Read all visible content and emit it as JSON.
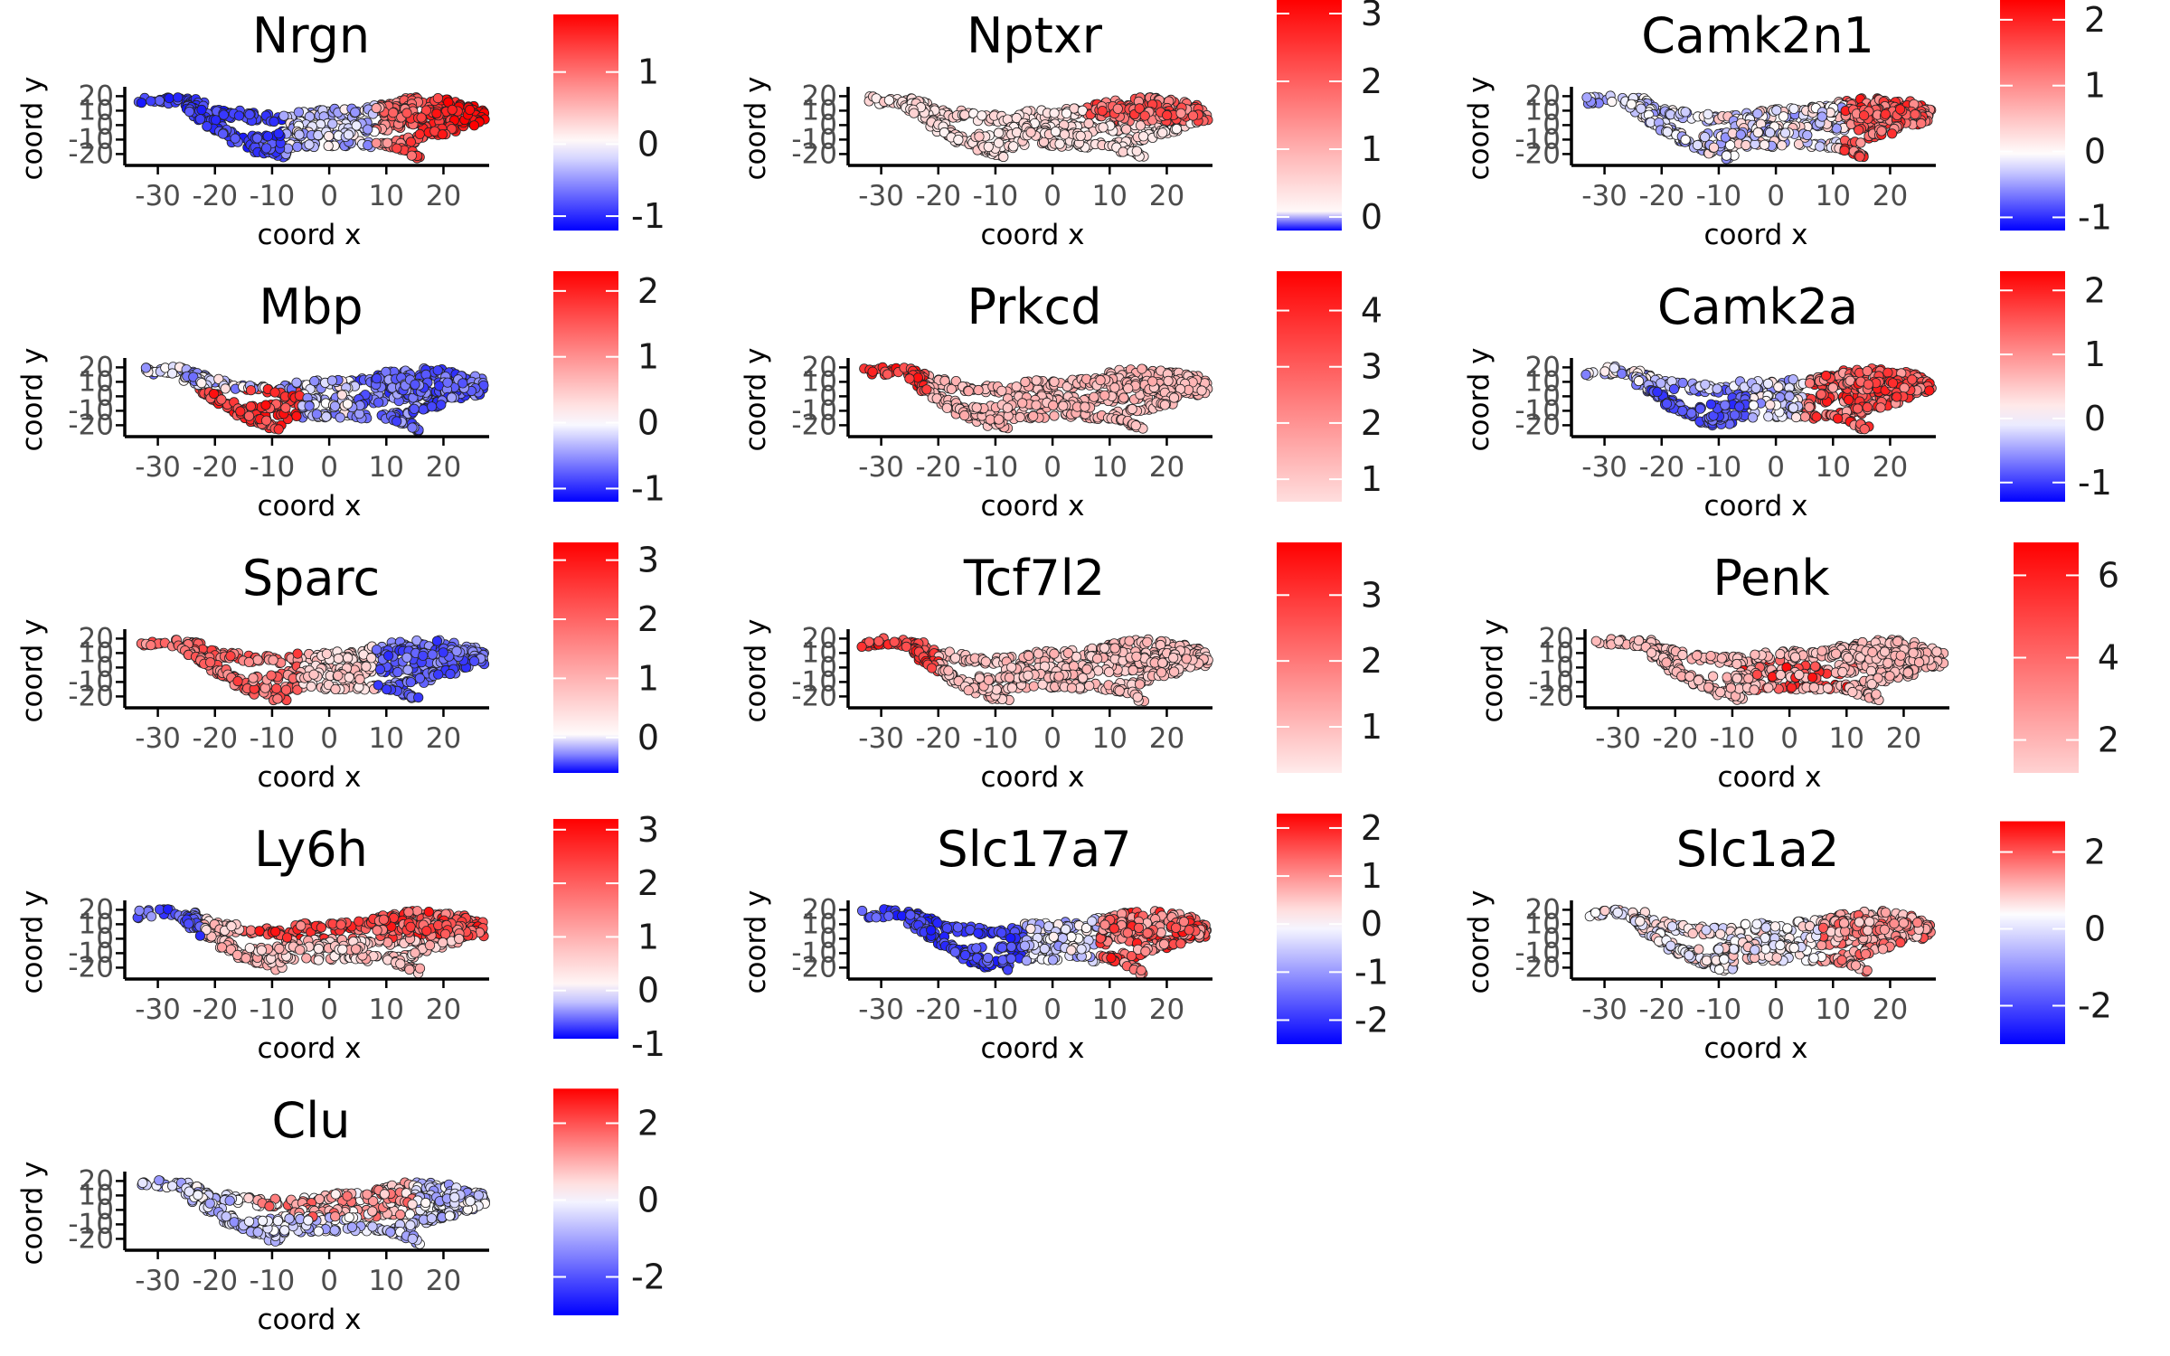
{
  "figure": {
    "colors": {
      "low": "#0000ff",
      "mid": "#ffffff",
      "high": "#ff0000",
      "point_outline": "#222222",
      "axis": "#000000",
      "tick_label": "#4d4d4d"
    }
  },
  "chart_data": [
    {
      "type": "scatter",
      "title": "Nrgn",
      "xlabel": "coord x",
      "ylabel": "coord y",
      "x_ticks": [
        "-30",
        "-20",
        "-10",
        "0",
        "10",
        "20"
      ],
      "y_ticks": [
        "20",
        "10",
        "0",
        "-10",
        "-20"
      ],
      "xlim": [
        -35,
        28
      ],
      "ylim": [
        -26,
        24
      ],
      "grid": false,
      "colorbar": {
        "ticks": [
          "1",
          "0",
          "-1"
        ],
        "tick_values": [
          1,
          0,
          -1
        ],
        "domain": [
          -1.2,
          2.0
        ],
        "gradient_span": [
          -1.2,
          1.8
        ],
        "legend_position": "right"
      },
      "spatial_pattern": "high in right lobe (x 10 to 25), low on left arm (x -30 to -10)"
    },
    {
      "type": "scatter",
      "title": "Nptxr",
      "xlabel": "coord x",
      "ylabel": "coord y",
      "x_ticks": [
        "-30",
        "-20",
        "-10",
        "0",
        "10",
        "20"
      ],
      "y_ticks": [
        "20",
        "10",
        "0",
        "-10",
        "-20"
      ],
      "xlim": [
        -35,
        28
      ],
      "ylim": [
        -26,
        24
      ],
      "grid": false,
      "colorbar": {
        "ticks": [
          "3",
          "2",
          "1",
          "0"
        ],
        "tick_values": [
          3,
          2,
          1,
          0
        ],
        "domain": [
          -0.2,
          3.2
        ],
        "gradient_span": [
          -0.2,
          3.2
        ],
        "legend_position": "right"
      },
      "spatial_pattern": "high in upper right lobe (x 8 to 22), low elsewhere"
    },
    {
      "type": "scatter",
      "title": "Camk2n1",
      "xlabel": "coord x",
      "ylabel": "coord y",
      "x_ticks": [
        "-30",
        "-20",
        "-10",
        "0",
        "10",
        "20"
      ],
      "y_ticks": [
        "20",
        "10",
        "0",
        "-10",
        "-20"
      ],
      "xlim": [
        -35,
        28
      ],
      "ylim": [
        -26,
        24
      ],
      "grid": false,
      "colorbar": {
        "ticks": [
          "2",
          "1",
          "0",
          "-1"
        ],
        "tick_values": [
          2,
          1,
          0,
          -1
        ],
        "domain": [
          -1.2,
          2.3
        ],
        "gradient_span": [
          -1.2,
          2.5
        ],
        "legend_position": "right"
      },
      "spatial_pattern": "high in right lobe (x 15 to 25), mixed in middle"
    },
    {
      "type": "scatter",
      "title": "Mbp",
      "xlabel": "coord x",
      "ylabel": "coord y",
      "x_ticks": [
        "-30",
        "-20",
        "-10",
        "0",
        "10",
        "20"
      ],
      "y_ticks": [
        "20",
        "10",
        "0",
        "-10",
        "-20"
      ],
      "xlim": [
        -35,
        28
      ],
      "ylim": [
        -26,
        24
      ],
      "grid": false,
      "colorbar": {
        "ticks": [
          "2",
          "1",
          "0",
          "-1"
        ],
        "tick_values": [
          2,
          1,
          0,
          -1
        ],
        "domain": [
          -1.2,
          2.3
        ],
        "gradient_span": [
          -1.2,
          2.3
        ],
        "legend_position": "right"
      },
      "spatial_pattern": "high on lower-left branch (x -20 to -5), low in right lobe"
    },
    {
      "type": "scatter",
      "title": "Prkcd",
      "xlabel": "coord x",
      "ylabel": "coord y",
      "x_ticks": [
        "-30",
        "-20",
        "-10",
        "0",
        "10",
        "20"
      ],
      "y_ticks": [
        "20",
        "10",
        "0",
        "-10",
        "-20"
      ],
      "xlim": [
        -35,
        28
      ],
      "ylim": [
        -26,
        24
      ],
      "grid": false,
      "colorbar": {
        "ticks": [
          "4",
          "3",
          "2",
          "1"
        ],
        "tick_values": [
          4,
          3,
          2,
          1
        ],
        "domain": [
          0.6,
          4.7
        ],
        "gradient_span": [
          0.6,
          4.7
        ],
        "legend_position": "right"
      },
      "spatial_pattern": "high at far-left tip (x -32 to -22), low elsewhere"
    },
    {
      "type": "scatter",
      "title": "Camk2a",
      "xlabel": "coord x",
      "ylabel": "coord y",
      "x_ticks": [
        "-30",
        "-20",
        "-10",
        "0",
        "10",
        "20"
      ],
      "y_ticks": [
        "20",
        "10",
        "0",
        "-10",
        "-20"
      ],
      "xlim": [
        -35,
        28
      ],
      "ylim": [
        -26,
        24
      ],
      "grid": false,
      "colorbar": {
        "ticks": [
          "2",
          "1",
          "0",
          "-1"
        ],
        "tick_values": [
          2,
          1,
          0,
          -1
        ],
        "domain": [
          -1.3,
          2.3
        ],
        "gradient_span": [
          -1.3,
          2.3
        ],
        "legend_position": "right"
      },
      "spatial_pattern": "high in right lobe (x 5 to 22), low on lower-left branch"
    },
    {
      "type": "scatter",
      "title": "Sparc",
      "xlabel": "coord x",
      "ylabel": "coord y",
      "x_ticks": [
        "-30",
        "-20",
        "-10",
        "0",
        "10",
        "20"
      ],
      "y_ticks": [
        "20",
        "10",
        "0",
        "-10",
        "-20"
      ],
      "xlim": [
        -35,
        28
      ],
      "ylim": [
        -26,
        24
      ],
      "grid": false,
      "colorbar": {
        "ticks": [
          "3",
          "2",
          "1",
          "0"
        ],
        "tick_values": [
          3,
          2,
          1,
          0
        ],
        "domain": [
          -0.6,
          3.3
        ],
        "gradient_span": [
          -0.6,
          3.3
        ],
        "legend_position": "right"
      },
      "spatial_pattern": "high on left arm and lower-left branch, low in right lobe"
    },
    {
      "type": "scatter",
      "title": "Tcf7l2",
      "xlabel": "coord x",
      "ylabel": "coord y",
      "x_ticks": [
        "-30",
        "-20",
        "-10",
        "0",
        "10",
        "20"
      ],
      "y_ticks": [
        "20",
        "10",
        "0",
        "-10",
        "-20"
      ],
      "xlim": [
        -35,
        28
      ],
      "ylim": [
        -26,
        24
      ],
      "grid": false,
      "colorbar": {
        "ticks": [
          "3",
          "2",
          "1"
        ],
        "tick_values": [
          3,
          2,
          1
        ],
        "domain": [
          0.3,
          3.8
        ],
        "gradient_span": [
          0.3,
          3.8
        ],
        "legend_position": "right"
      },
      "spatial_pattern": "high at far-left tip (x -32 to -20), low elsewhere"
    },
    {
      "type": "scatter",
      "title": "Penk",
      "xlabel": "coord x",
      "ylabel": "coord y",
      "x_ticks": [
        "-30",
        "-20",
        "-10",
        "0",
        "10",
        "20"
      ],
      "y_ticks": [
        "20",
        "10",
        "0",
        "-10",
        "-20"
      ],
      "xlim": [
        -35,
        28
      ],
      "ylim": [
        -26,
        24
      ],
      "grid": false,
      "colorbar": {
        "ticks": [
          "6",
          "4",
          "2"
        ],
        "tick_values": [
          6,
          4,
          2
        ],
        "domain": [
          1.2,
          6.8
        ],
        "gradient_span": [
          1.2,
          6.8
        ],
        "legend_position": "right"
      },
      "spatial_pattern": "mostly low, scattered high near x -5 to 10"
    },
    {
      "type": "scatter",
      "title": "Ly6h",
      "xlabel": "coord x",
      "ylabel": "coord y",
      "x_ticks": [
        "-30",
        "-20",
        "-10",
        "0",
        "10",
        "20"
      ],
      "y_ticks": [
        "20",
        "10",
        "0",
        "-10",
        "-20"
      ],
      "xlim": [
        -35,
        28
      ],
      "ylim": [
        -26,
        24
      ],
      "grid": false,
      "colorbar": {
        "ticks": [
          "3",
          "2",
          "1",
          "0",
          "-1"
        ],
        "tick_values": [
          3,
          2,
          1,
          0,
          -1
        ],
        "domain": [
          -1.0,
          3.3
        ],
        "gradient_span": [
          -0.9,
          3.2
        ],
        "legend_position": "right"
      },
      "spatial_pattern": "high in middle band and right lobe, low at far left"
    },
    {
      "type": "scatter",
      "title": "Slc17a7",
      "xlabel": "coord x",
      "ylabel": "coord y",
      "x_ticks": [
        "-30",
        "-20",
        "-10",
        "0",
        "10",
        "20"
      ],
      "y_ticks": [
        "20",
        "10",
        "0",
        "-10",
        "-20"
      ],
      "xlim": [
        -35,
        28
      ],
      "ylim": [
        -26,
        24
      ],
      "grid": false,
      "colorbar": {
        "ticks": [
          "2",
          "1",
          "0",
          "-1",
          "-2"
        ],
        "tick_values": [
          2,
          1,
          0,
          -1,
          -2
        ],
        "domain": [
          -2.5,
          2.3
        ],
        "gradient_span": [
          -2.5,
          2.3
        ],
        "legend_position": "right"
      },
      "spatial_pattern": "high in right lobe (x 10 to 25), low on left and lower-left branch"
    },
    {
      "type": "scatter",
      "title": "Slc1a2",
      "xlabel": "coord x",
      "ylabel": "coord y",
      "x_ticks": [
        "-30",
        "-20",
        "-10",
        "0",
        "10",
        "20"
      ],
      "y_ticks": [
        "20",
        "10",
        "0",
        "-10",
        "-20"
      ],
      "xlim": [
        -35,
        28
      ],
      "ylim": [
        -26,
        24
      ],
      "grid": false,
      "colorbar": {
        "ticks": [
          "2",
          "0",
          "-2"
        ],
        "tick_values": [
          2,
          0,
          -2
        ],
        "domain": [
          -3.0,
          3.0
        ],
        "gradient_span": [
          -4.0,
          2.8
        ],
        "legend_position": "right"
      },
      "spatial_pattern": "mild high in right lobe, mixed elsewhere"
    },
    {
      "type": "scatter",
      "title": "Clu",
      "xlabel": "coord x",
      "ylabel": "coord y",
      "x_ticks": [
        "-30",
        "-20",
        "-10",
        "0",
        "10",
        "20"
      ],
      "y_ticks": [
        "20",
        "10",
        "0",
        "-10",
        "-20"
      ],
      "xlim": [
        -35,
        28
      ],
      "ylim": [
        -26,
        24
      ],
      "grid": false,
      "colorbar": {
        "ticks": [
          "2",
          "0",
          "-2"
        ],
        "tick_values": [
          2,
          0,
          -2
        ],
        "domain": [
          -3.0,
          3.0
        ],
        "gradient_span": [
          -3.2,
          2.9
        ],
        "legend_position": "right"
      },
      "spatial_pattern": "mixed, mild highs in middle band"
    }
  ]
}
